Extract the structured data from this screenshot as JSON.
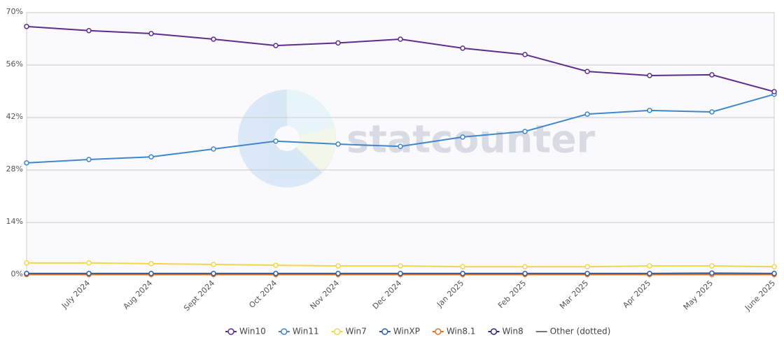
{
  "chart_data": {
    "type": "line",
    "watermark": "statcounter",
    "categories": [
      null,
      "July 2024",
      "Aug 2024",
      "Sept 2024",
      "Oct 2024",
      "Nov 2024",
      "Dec 2024",
      "Jan 2025",
      "Feb 2025",
      "Mar 2025",
      "Apr 2025",
      "May 2025",
      "June 2025"
    ],
    "series": [
      {
        "name": "Win10",
        "color": "#5f2d8f",
        "values": [
          66.3,
          65.2,
          64.4,
          62.9,
          61.2,
          61.9,
          62.9,
          60.5,
          58.8,
          54.3,
          53.2,
          53.4,
          48.9
        ]
      },
      {
        "name": "Win11",
        "color": "#3f87cc",
        "values": [
          29.9,
          30.8,
          31.5,
          33.6,
          35.7,
          34.9,
          34.3,
          36.8,
          38.3,
          42.9,
          43.9,
          43.5,
          48.2
        ]
      },
      {
        "name": "Win7",
        "color": "#f3d64a",
        "values": [
          3.2,
          3.2,
          3.0,
          2.8,
          2.6,
          2.4,
          2.4,
          2.2,
          2.2,
          2.2,
          2.4,
          2.4,
          2.2
        ]
      },
      {
        "name": "WinXP",
        "color": "#2f5fa8",
        "values": [
          0.4,
          0.4,
          0.4,
          0.4,
          0.4,
          0.4,
          0.4,
          0.4,
          0.4,
          0.4,
          0.4,
          0.5,
          0.4
        ]
      },
      {
        "name": "Win8.1",
        "color": "#e8731f",
        "values": [
          0.1,
          0.1,
          0.1,
          0.1,
          0.1,
          0.1,
          0.1,
          0.1,
          0.1,
          0.1,
          0.1,
          0.1,
          0.1
        ]
      },
      {
        "name": "Win8",
        "color": "#2b2b80",
        "values": [
          0.3,
          0.3,
          0.3,
          0.3,
          0.3,
          0.3,
          0.3,
          0.3,
          0.3,
          0.3,
          0.3,
          0.3,
          0.3
        ]
      },
      {
        "name": "Other (dotted)",
        "color": "#777777",
        "style": "dotted",
        "values": [
          0.2,
          0.2,
          0.2,
          0.2,
          0.2,
          0.2,
          0.2,
          0.2,
          0.2,
          0.2,
          0.2,
          0.2,
          0.2
        ]
      }
    ],
    "ylim": [
      0,
      70
    ],
    "yticks": [
      {
        "value": 0,
        "label": "0%"
      },
      {
        "value": 14,
        "label": "14%"
      },
      {
        "value": 28,
        "label": "28%"
      },
      {
        "value": 42,
        "label": "42%"
      },
      {
        "value": 56,
        "label": "56%"
      },
      {
        "value": 70,
        "label": "70%"
      }
    ],
    "grid": true
  }
}
